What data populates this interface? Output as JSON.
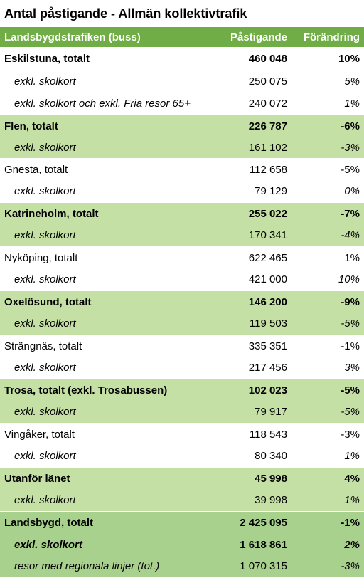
{
  "title": "Antal påstigande - Allmän kollektivtrafik",
  "header": {
    "col1": "Landsbygdstrafiken (buss)",
    "col2": "Påstigande",
    "col3": "Förändring"
  },
  "rows": [
    {
      "label": "Eskilstuna, totalt",
      "value": "460 048",
      "change": "10%",
      "kind": "total",
      "bold": true,
      "green": false,
      "h": 33
    },
    {
      "label": "exkl. skolkort",
      "value": "250 075",
      "change": "5%",
      "kind": "sub",
      "bold": false,
      "green": false,
      "h": 31
    },
    {
      "label": "exkl. skolkort och exkl. Fria resor 65+",
      "value": "240 072",
      "change": "1%",
      "kind": "sub",
      "bold": false,
      "green": false,
      "h": 31
    },
    {
      "label": "Flen, totalt",
      "value": "226 787",
      "change": "-6%",
      "kind": "total",
      "bold": true,
      "green": true,
      "h": 32
    },
    {
      "label": "exkl. skolkort",
      "value": "161 102",
      "change": "-3%",
      "kind": "sub",
      "bold": false,
      "green": true,
      "h": 29
    },
    {
      "label": "Gnesta, totalt",
      "value": "112 658",
      "change": "-5%",
      "kind": "total",
      "bold": false,
      "green": false,
      "h": 32
    },
    {
      "label": "exkl. skolkort",
      "value": "79 129",
      "change": "0%",
      "kind": "sub",
      "bold": false,
      "green": false,
      "h": 30
    },
    {
      "label": "Katrineholm, totalt",
      "value": "255 022",
      "change": "-7%",
      "kind": "total",
      "bold": true,
      "green": true,
      "h": 32
    },
    {
      "label": "exkl. skolkort",
      "value": "170 341",
      "change": "-4%",
      "kind": "sub",
      "bold": false,
      "green": true,
      "h": 30
    },
    {
      "label": "Nyköping, totalt",
      "value": "622 465",
      "change": "1%",
      "kind": "total",
      "bold": false,
      "green": false,
      "h": 32
    },
    {
      "label": "exkl. skolkort",
      "value": "421 000",
      "change": "10%",
      "kind": "sub",
      "bold": false,
      "green": false,
      "h": 30
    },
    {
      "label": "Oxelösund, totalt",
      "value": "146 200",
      "change": "-9%",
      "kind": "total",
      "bold": true,
      "green": true,
      "h": 32
    },
    {
      "label": "exkl. skolkort",
      "value": "119 503",
      "change": "-5%",
      "kind": "sub",
      "bold": false,
      "green": true,
      "h": 30
    },
    {
      "label": "Strängnäs, totalt",
      "value": "335 351",
      "change": "-1%",
      "kind": "total",
      "bold": false,
      "green": false,
      "h": 32
    },
    {
      "label": "exkl. skolkort",
      "value": "217 456",
      "change": "3%",
      "kind": "sub",
      "bold": false,
      "green": false,
      "h": 30
    },
    {
      "label": "Trosa, totalt (exkl. Trosabussen)",
      "value": "102 023",
      "change": "-5%",
      "kind": "total",
      "bold": true,
      "green": true,
      "h": 32
    },
    {
      "label": "exkl. skolkort",
      "value": "79 917",
      "change": "-5%",
      "kind": "sub",
      "bold": false,
      "green": true,
      "h": 30
    },
    {
      "label": "Vingåker, totalt",
      "value": "118 543",
      "change": "-3%",
      "kind": "total",
      "bold": false,
      "green": false,
      "h": 32
    },
    {
      "label": "exkl. skolkort",
      "value": "80 340",
      "change": "1%",
      "kind": "sub",
      "bold": false,
      "green": false,
      "h": 30
    },
    {
      "label": "Utanför länet",
      "value": "45 998",
      "change": "4%",
      "kind": "total",
      "bold": true,
      "green": true,
      "h": 32
    },
    {
      "label": "exkl. skolkort",
      "value": "39 998",
      "change": "1%",
      "kind": "sub",
      "bold": false,
      "green": true,
      "h": 30
    },
    {
      "label": "Landsbygd, totalt",
      "value": "2 425 095",
      "change": "-1%",
      "kind": "total",
      "bold": true,
      "green": "sum",
      "h": 32
    },
    {
      "label": "exkl. skolkort",
      "value": "1 618 861",
      "change": "2%",
      "kind": "sub",
      "bold": true,
      "green": "sum",
      "h": 30
    },
    {
      "label": "resor med regionala linjer (tot.)",
      "value": "1 070 315",
      "change": "-3%",
      "kind": "sub",
      "bold": false,
      "green": "sum",
      "h": 30
    }
  ],
  "colors": {
    "header_bg": "#70ad47",
    "band_light": "#c5e0a5",
    "band_sum": "#a9d18e"
  }
}
